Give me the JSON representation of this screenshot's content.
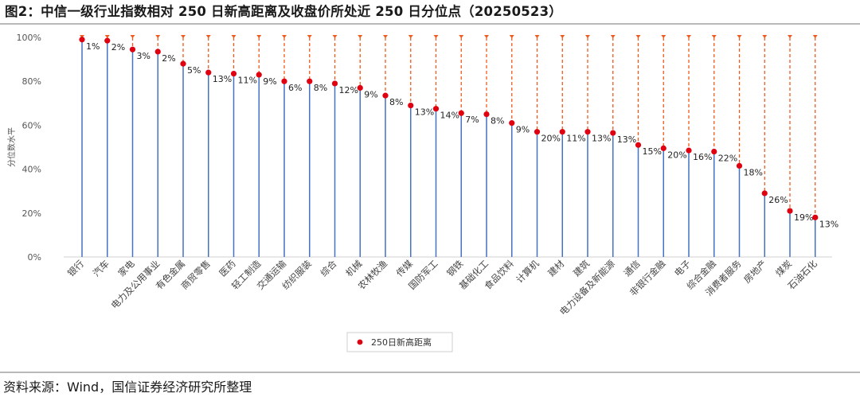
{
  "title": "图2：中信一级行业指数相对 250 日新高距离及收盘价所处近 250 日分位点（20250523）",
  "source": "资料来源：Wind，国信证券经济研究所整理",
  "colors": {
    "marker": "#e0000f",
    "stem": "#4472c4",
    "guide": "#f05a1e"
  },
  "chart_data": {
    "type": "scatter",
    "ylabel": "分位数水平",
    "ylim": [
      0,
      100
    ],
    "y_ticks": [
      "0%",
      "20%",
      "40%",
      "60%",
      "80%",
      "100%"
    ],
    "legend": {
      "position": "bottom",
      "entries": [
        "250日新高距离"
      ]
    },
    "grid": false,
    "categories": [
      "银行",
      "汽车",
      "家电",
      "电力及公用事业",
      "有色金属",
      "商贸零售",
      "医药",
      "轻工制造",
      "交通运输",
      "纺织服装",
      "综合",
      "机械",
      "农林牧渔",
      "传媒",
      "国防军工",
      "钢铁",
      "基础化工",
      "食品饮料",
      "计算机",
      "建材",
      "建筑",
      "电力设备及新能源",
      "通信",
      "非银行金融",
      "电子",
      "综合金融",
      "消费者服务",
      "房地产",
      "煤炭",
      "石油石化"
    ],
    "series": [
      {
        "name": "250日新高距离",
        "values": [
          99,
          98.5,
          94.5,
          93.5,
          88,
          84,
          83.5,
          83,
          80,
          80,
          79,
          77,
          73.5,
          69,
          67.5,
          65.5,
          65,
          61,
          57,
          57,
          57,
          56.5,
          51,
          49.5,
          48.5,
          48,
          41.5,
          29,
          21,
          18
        ],
        "labels": [
          "1%",
          "2%",
          "3%",
          "2%",
          "5%",
          "13%",
          "11%",
          "9%",
          "6%",
          "8%",
          "12%",
          "9%",
          "8%",
          "13%",
          "14%",
          "7%",
          "8%",
          "9%",
          "20%",
          "11%",
          "13%",
          "13%",
          "15%",
          "20%",
          "16%",
          "22%",
          "18%",
          "26%",
          "19%",
          "13%"
        ]
      }
    ]
  }
}
